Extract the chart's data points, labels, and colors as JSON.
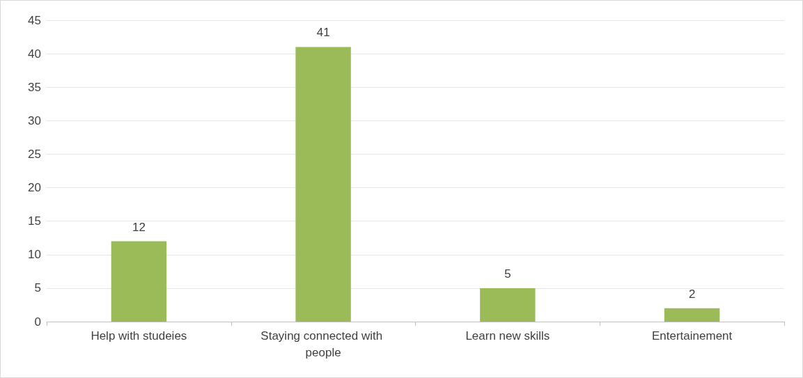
{
  "chart_data": {
    "type": "bar",
    "categories": [
      "Help with studeies",
      "Staying connected with people",
      "Learn new skills",
      "Entertainement"
    ],
    "values": [
      12,
      41,
      5,
      2
    ],
    "color": "#9bbb59",
    "ylim": [
      0,
      45
    ],
    "yticks": [
      0,
      5,
      10,
      15,
      20,
      25,
      30,
      35,
      40,
      45
    ],
    "grid": "y",
    "data_labels": true
  }
}
